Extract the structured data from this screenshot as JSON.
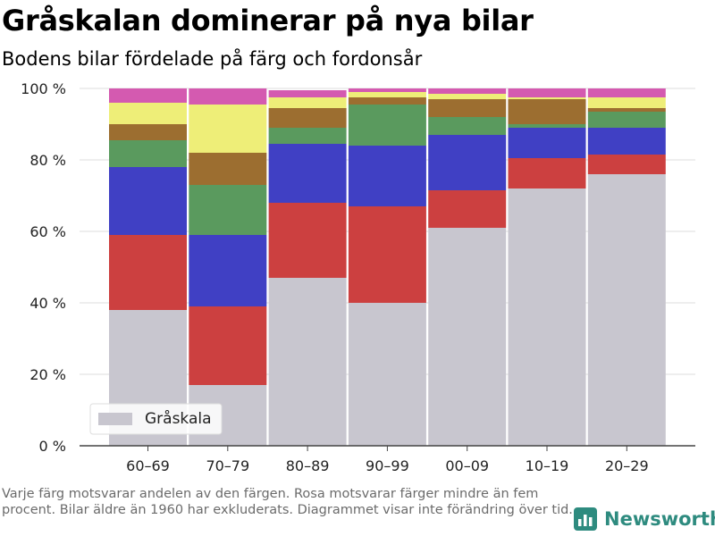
{
  "header": {
    "title": "Gråskalan dominerar på nya bilar",
    "subtitle": "Bodens bilar fördelade på färg och fordonsår"
  },
  "footer": {
    "note": "Varje färg motsvarar andelen av den färgen. Rosa motsvarar färger mindre än fem procent. Bilar äldre än 1960 har exkluderats. Diagrammet visar inte förändring över tid.",
    "brand": "Newsworthy",
    "brand_color": "#2e8b7f"
  },
  "chart_data": {
    "type": "bar",
    "stacked": true,
    "categories": [
      "60–69",
      "70–79",
      "80–89",
      "90–99",
      "00–09",
      "10–19",
      "20–29"
    ],
    "ylim": [
      0,
      100
    ],
    "yticks": [
      0,
      20,
      40,
      60,
      80,
      100
    ],
    "ytick_labels": [
      "0 %",
      "20 %",
      "40 %",
      "60 %",
      "80 %",
      "100 %"
    ],
    "grid": true,
    "legend": {
      "position": "bottom-left",
      "entries": [
        "Gråskala"
      ]
    },
    "series": [
      {
        "name": "Gråskala",
        "color": "#c8c6cf",
        "values": [
          38,
          17,
          47,
          40,
          61,
          72,
          76
        ]
      },
      {
        "color": "#cc4040",
        "values": [
          21,
          22,
          21,
          27,
          10.5,
          8.5,
          5.5
        ]
      },
      {
        "color": "#4040c4",
        "values": [
          19,
          20,
          16.5,
          17,
          15.5,
          8.5,
          7.5
        ]
      },
      {
        "color": "#5a9a5e",
        "values": [
          7.5,
          14,
          4.5,
          11.5,
          5,
          1,
          4.5
        ]
      },
      {
        "color": "#9c6e30",
        "values": [
          4.5,
          9,
          5.5,
          2,
          5,
          7,
          1
        ]
      },
      {
        "color": "#eeee78",
        "values": [
          6,
          13.5,
          3,
          1.5,
          1.5,
          0.5,
          3
        ]
      },
      {
        "color": "#d45ab0",
        "values": [
          4,
          4.5,
          2,
          1,
          1.5,
          2.5,
          2.5
        ]
      }
    ]
  }
}
